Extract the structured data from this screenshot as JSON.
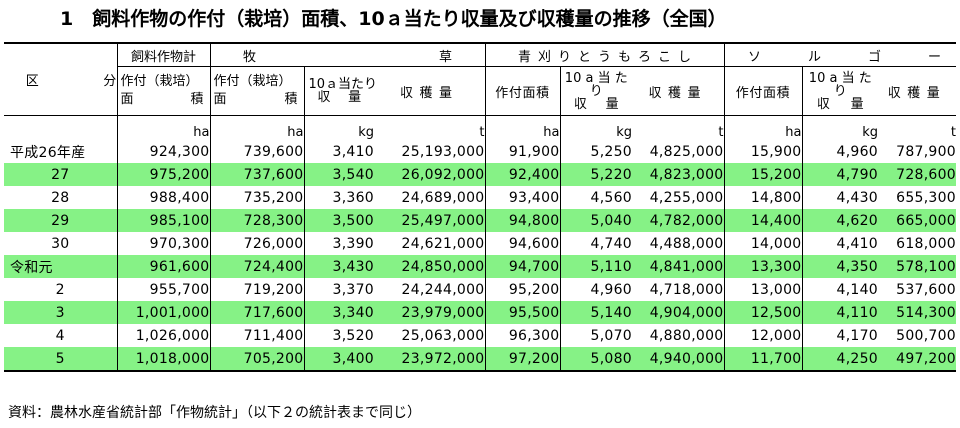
{
  "title": "1　飼料作物の作付（栽培）面積、10ａ当たり収量及び収穫量の推移（全国）",
  "header": {
    "kubun": [
      "区",
      "分"
    ],
    "total_group": "飼料作物計",
    "bokuso_group": [
      "牧",
      "草"
    ],
    "aogari_group": [
      "青",
      "刈",
      "り",
      "と",
      "う",
      "も",
      "ろ",
      "こ",
      "し"
    ],
    "sorgo_group": [
      "ソ",
      "ル",
      "ゴ",
      "ー"
    ],
    "area_line1": "作付（栽培）",
    "area_line2": [
      "面",
      "積"
    ],
    "yield_per10a": [
      "10ａ当たり",
      "収",
      "量"
    ],
    "yield_per10a_small": [
      "10 a 当 た",
      "り",
      "収",
      "量"
    ],
    "harvest": "収穫量",
    "area_simple": "作付面積"
  },
  "units": [
    "ha",
    "ha",
    "kg",
    "t",
    "ha",
    "kg",
    "t",
    "ha",
    "kg",
    "t"
  ],
  "rows": [
    {
      "label": "平成26年産",
      "center": false,
      "green": false,
      "values": [
        "924,300",
        "739,600",
        "3,410",
        "25,193,000",
        "91,900",
        "5,250",
        "4,825,000",
        "15,900",
        "4,960",
        "787,900"
      ]
    },
    {
      "label": "27",
      "center": true,
      "green": true,
      "values": [
        "975,200",
        "737,600",
        "3,540",
        "26,092,000",
        "92,400",
        "5,220",
        "4,823,000",
        "15,200",
        "4,790",
        "728,600"
      ]
    },
    {
      "label": "28",
      "center": true,
      "green": false,
      "values": [
        "988,400",
        "735,200",
        "3,360",
        "24,689,000",
        "93,400",
        "4,560",
        "4,255,000",
        "14,800",
        "4,430",
        "655,300"
      ]
    },
    {
      "label": "29",
      "center": true,
      "green": true,
      "values": [
        "985,100",
        "728,300",
        "3,500",
        "25,497,000",
        "94,800",
        "5,040",
        "4,782,000",
        "14,400",
        "4,620",
        "665,000"
      ]
    },
    {
      "label": "30",
      "center": true,
      "green": false,
      "values": [
        "970,300",
        "726,000",
        "3,390",
        "24,621,000",
        "94,600",
        "4,740",
        "4,488,000",
        "14,000",
        "4,410",
        "618,000"
      ]
    },
    {
      "label": "令和元",
      "center": false,
      "green": true,
      "values": [
        "961,600",
        "724,400",
        "3,430",
        "24,850,000",
        "94,700",
        "5,110",
        "4,841,000",
        "13,300",
        "4,350",
        "578,100"
      ]
    },
    {
      "label": "2",
      "center": true,
      "green": false,
      "values": [
        "955,700",
        "719,200",
        "3,370",
        "24,244,000",
        "95,200",
        "4,960",
        "4,718,000",
        "13,000",
        "4,140",
        "537,600"
      ]
    },
    {
      "label": "3",
      "center": true,
      "green": true,
      "values": [
        "1,001,000",
        "717,600",
        "3,340",
        "23,979,000",
        "95,500",
        "5,140",
        "4,904,000",
        "12,500",
        "4,110",
        "514,300"
      ]
    },
    {
      "label": "4",
      "center": true,
      "green": false,
      "values": [
        "1,026,000",
        "711,400",
        "3,520",
        "25,063,000",
        "96,300",
        "5,070",
        "4,880,000",
        "12,000",
        "4,170",
        "500,700"
      ]
    },
    {
      "label": "5",
      "center": true,
      "green": true,
      "values": [
        "1,018,000",
        "705,200",
        "3,400",
        "23,972,000",
        "97,200",
        "5,080",
        "4,940,000",
        "11,700",
        "4,250",
        "497,200"
      ]
    }
  ],
  "source": "資料：農林水産省統計部「作物統計」（以下２の統計表まで同じ）",
  "colors": {
    "highlight": "#86f286"
  }
}
